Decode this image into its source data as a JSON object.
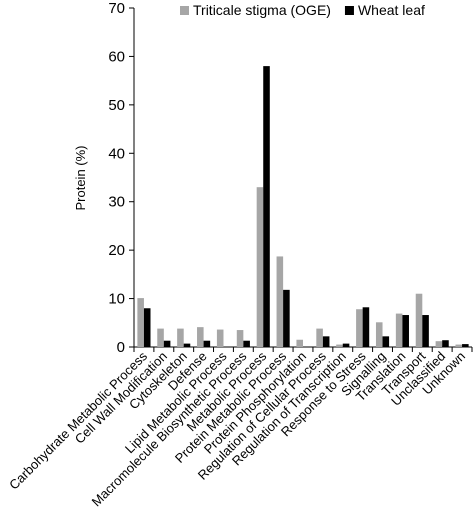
{
  "chart_data": {
    "type": "bar",
    "y_label": "Protein (%)",
    "categories": [
      "Carbohydrate Metabolic Process",
      "Cell Wall Modification",
      "Cytoskeleton",
      "Defense",
      "Lipid Metabolic Process",
      "Macromolecule Biosynthetic Process",
      "Metabolic Process",
      "Protein Metabolic Process",
      "Protein Phosphorylation",
      "Regulation of Cellular Process",
      "Regulation of Transcription",
      "Response to Stress",
      "Signalling",
      "Translation",
      "Transport",
      "Unclassified",
      "Unknown"
    ],
    "series": [
      {
        "name": "Triticale stigma (OGE)",
        "color": "#a6a6a6",
        "values": [
          10.1,
          3.8,
          3.8,
          4.1,
          3.6,
          3.5,
          33,
          18.7,
          1.5,
          3.8,
          0.5,
          7.8,
          5.1,
          6.9,
          11,
          1.2,
          0.5
        ]
      },
      {
        "name": "Wheat leaf",
        "color": "#000000",
        "values": [
          8.0,
          1.3,
          0.7,
          1.3,
          0,
          1.3,
          58,
          11.8,
          0,
          2.2,
          0.7,
          8.2,
          2.2,
          6.6,
          6.6,
          1.4,
          0.6
        ]
      }
    ],
    "ylim": [
      0,
      70
    ],
    "yticks": [
      0,
      10,
      20,
      30,
      40,
      50,
      60,
      70
    ],
    "grid": false,
    "legend": "top"
  }
}
